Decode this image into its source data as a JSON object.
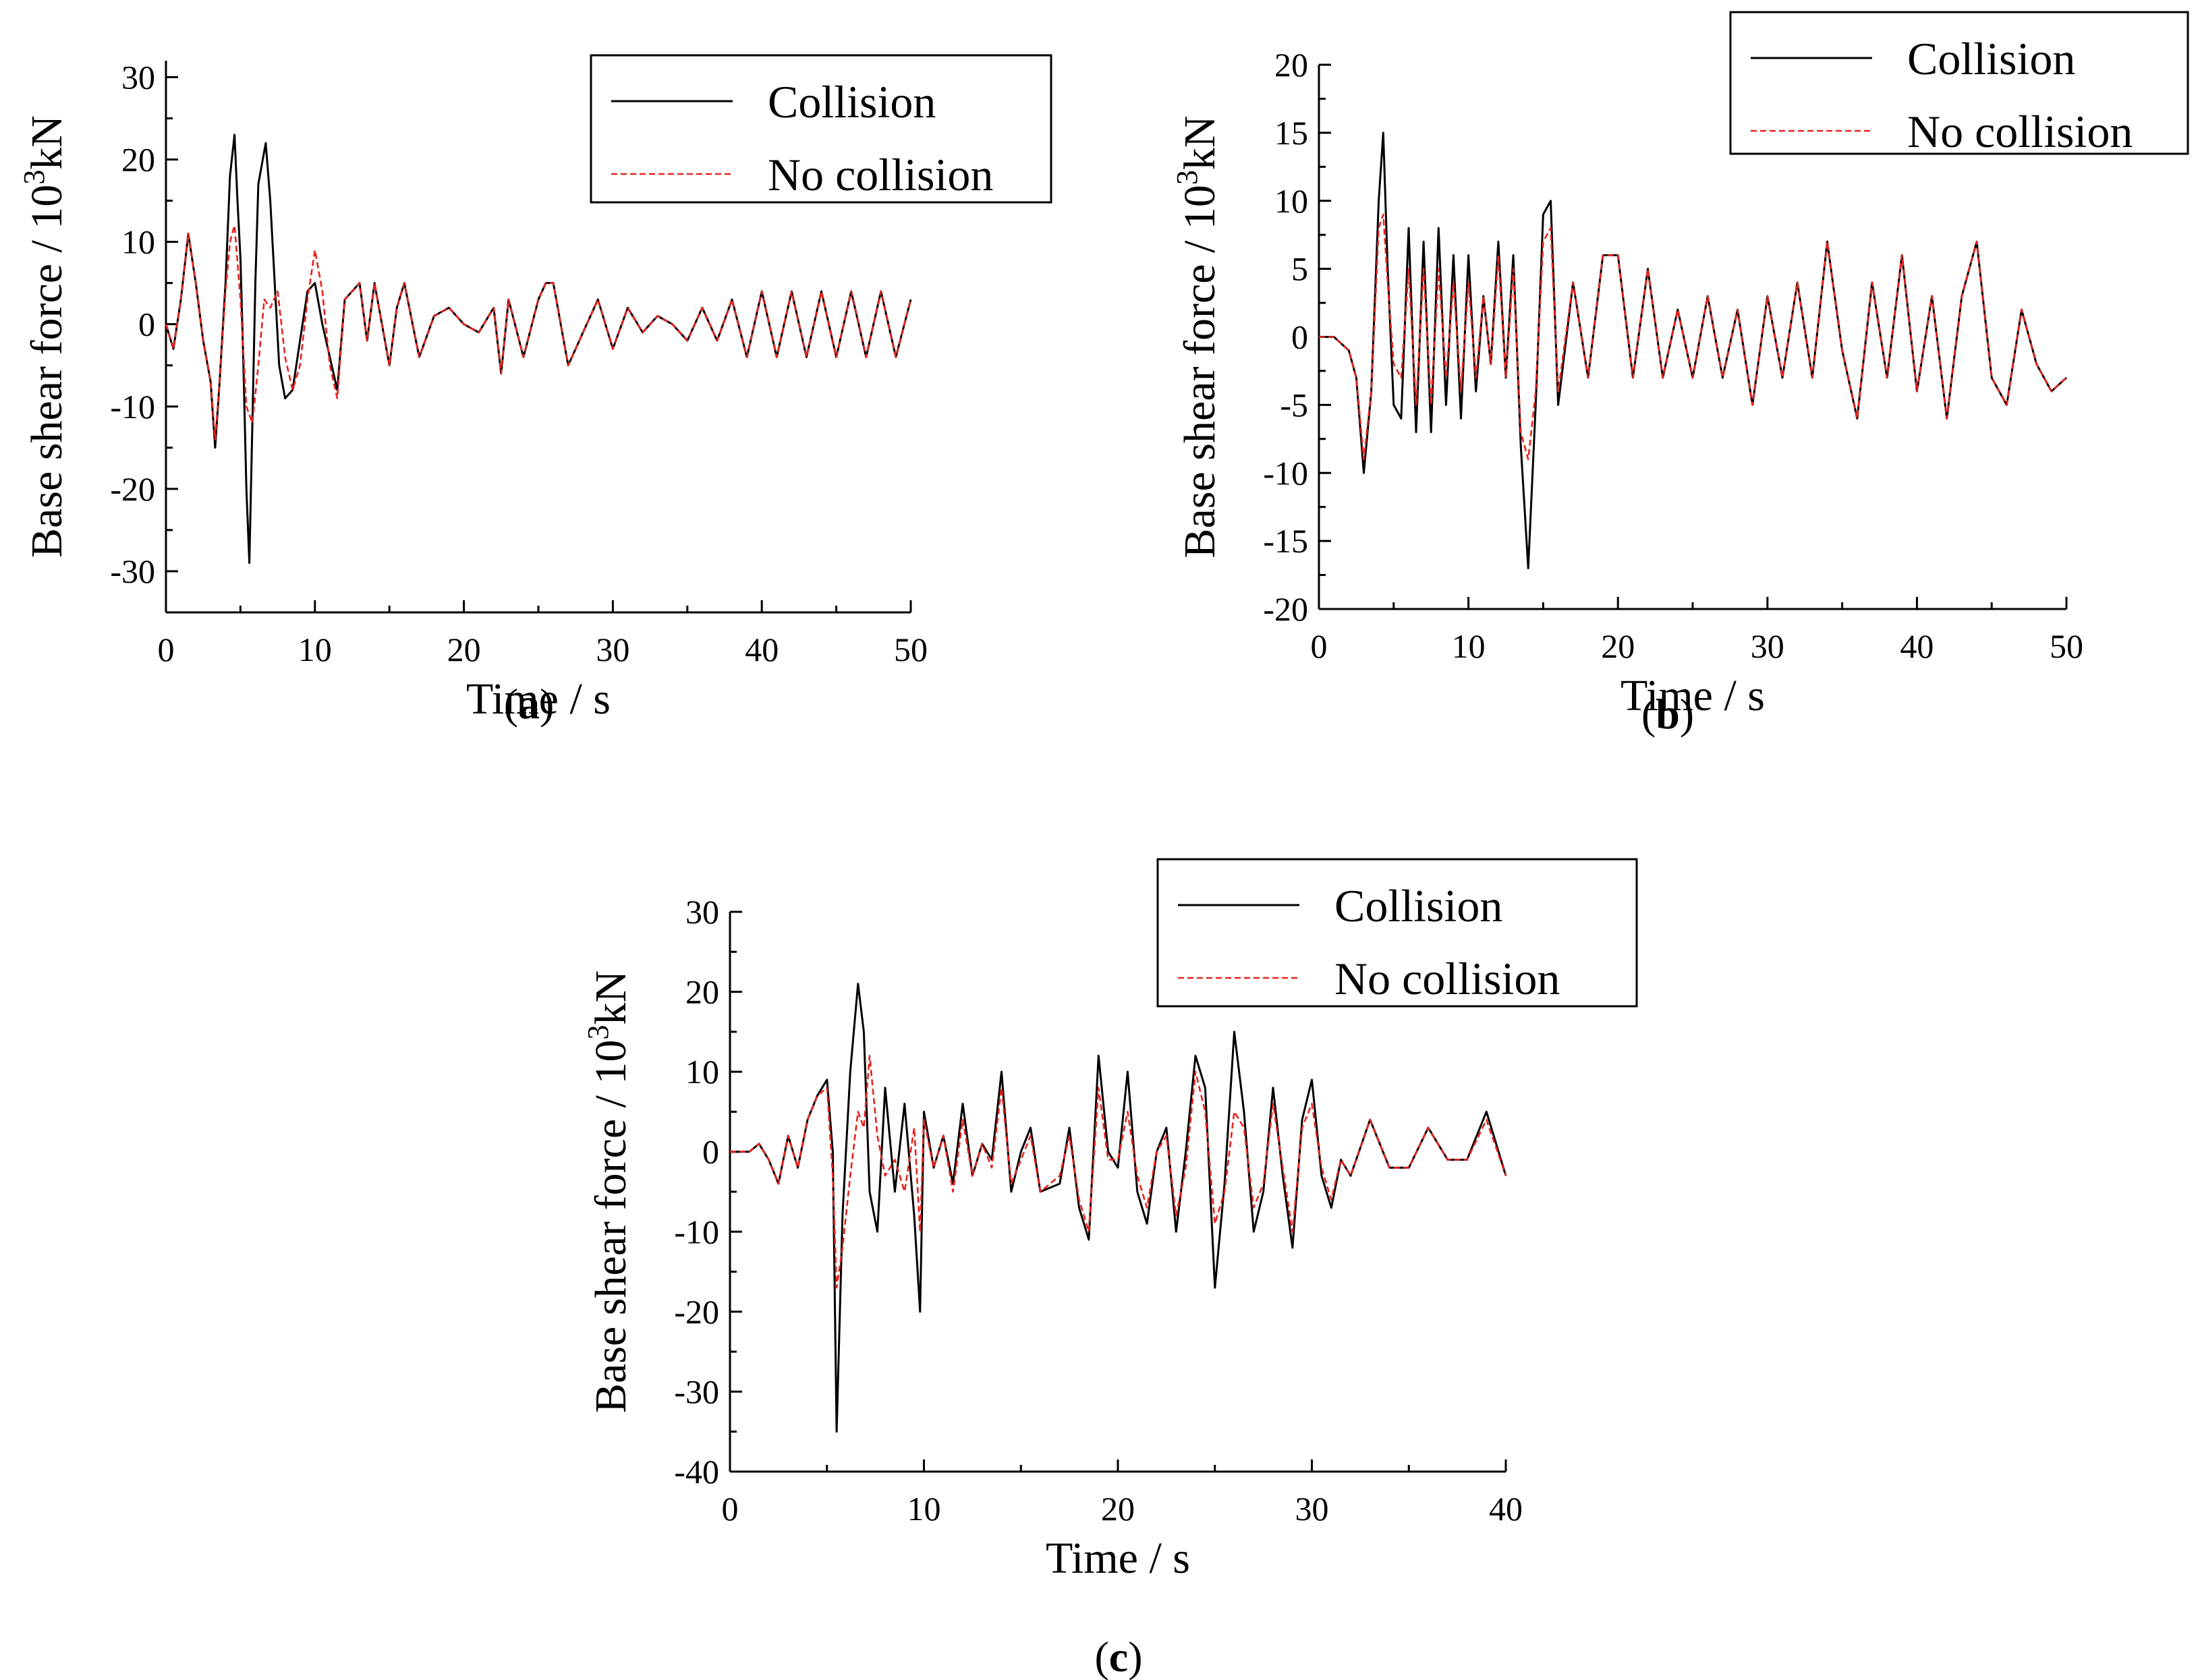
{
  "figure": {
    "panel_labels": [
      {
        "open": "(",
        "letter": "a",
        "close": ")"
      },
      {
        "open": "(",
        "letter": "b",
        "close": ")"
      },
      {
        "open": "(",
        "letter": "c",
        "close": ")"
      }
    ]
  },
  "colors": {
    "collision": "#000000",
    "no_collision": "#e8231f",
    "axis": "#000000"
  },
  "chart_data": [
    {
      "type": "line",
      "panel": "a",
      "xlabel": "Time / s",
      "ylabel": {
        "main": "Base shear force / 10",
        "sup": "3",
        "unit": "kN"
      },
      "xlim": [
        0,
        50
      ],
      "ylim": [
        -35,
        32
      ],
      "xticks": [
        0,
        10,
        20,
        30,
        40,
        50
      ],
      "yticks": [
        -30,
        -20,
        -10,
        0,
        10,
        20,
        30
      ],
      "grid": false,
      "legend_position": "top-right",
      "series": [
        {
          "name": "Collision",
          "style": "solid",
          "color": "#000000",
          "x": [
            0,
            0.5,
            1,
            1.5,
            2,
            2.5,
            3,
            3.3,
            3.6,
            4,
            4.3,
            4.6,
            4.8,
            5,
            5.2,
            5.4,
            5.6,
            5.8,
            6,
            6.2,
            6.5,
            6.7,
            7,
            7.3,
            7.6,
            8,
            8.5,
            9,
            9.5,
            10,
            10.5,
            11,
            11.5,
            12,
            12.5,
            13,
            13.5,
            14,
            15,
            15.5,
            16,
            17,
            18,
            19,
            20,
            21,
            22,
            22.5,
            23,
            24,
            25,
            25.5,
            26,
            27,
            28,
            29,
            30,
            31,
            32,
            33,
            34,
            35,
            36,
            37,
            38,
            39,
            40,
            41,
            42,
            43,
            44,
            45,
            46,
            47,
            48,
            49,
            50
          ],
          "y": [
            0,
            -3,
            3,
            11,
            5,
            -2,
            -7,
            -15,
            -7,
            5,
            18,
            23,
            15,
            8,
            -5,
            -20,
            -29,
            -12,
            5,
            17,
            20,
            22,
            15,
            5,
            -5,
            -9,
            -8,
            -2,
            4,
            5,
            0,
            -4,
            -8,
            3,
            4,
            5,
            -2,
            5,
            -5,
            2,
            5,
            -4,
            1,
            2,
            0,
            -1,
            2,
            -6,
            3,
            -4,
            3,
            5,
            5,
            -5,
            -1,
            3,
            -3,
            2,
            -1,
            1,
            0,
            -2,
            2,
            -2,
            3,
            -4,
            4,
            -4,
            4,
            -4,
            4,
            -4,
            4,
            -4,
            4,
            -4,
            3
          ]
        },
        {
          "name": "No collision",
          "style": "dashed",
          "color": "#e8231f",
          "x": [
            0,
            0.5,
            1,
            1.5,
            2,
            2.5,
            3,
            3.3,
            3.6,
            4,
            4.3,
            4.6,
            5,
            5.4,
            5.8,
            6.2,
            6.6,
            7,
            7.5,
            8,
            8.5,
            9,
            9.5,
            10,
            10.5,
            11,
            11.5,
            12,
            12.5,
            13,
            13.5,
            14,
            15,
            15.5,
            16,
            17,
            18,
            19,
            20,
            21,
            22,
            22.5,
            23,
            24,
            25,
            25.5,
            26,
            27,
            28,
            29,
            30,
            31,
            32,
            33,
            34,
            35,
            36,
            37,
            38,
            39,
            40,
            41,
            42,
            43,
            44,
            45,
            46,
            47,
            48,
            49,
            50
          ],
          "y": [
            0,
            -3,
            3,
            11,
            5,
            -2,
            -7,
            -14,
            -7,
            4,
            10,
            12,
            3,
            -10,
            -12,
            -5,
            3,
            2,
            4,
            -4,
            -8,
            -5,
            3,
            9,
            4,
            -5,
            -9,
            3,
            4,
            5,
            -2,
            5,
            -5,
            2,
            5,
            -4,
            1,
            2,
            0,
            -1,
            2,
            -6,
            3,
            -4,
            3,
            5,
            5,
            -5,
            -1,
            3,
            -3,
            2,
            -1,
            1,
            0,
            -2,
            2,
            -2,
            3,
            -4,
            4,
            -4,
            4,
            -4,
            4,
            -4,
            4,
            -4,
            4,
            -4,
            3
          ]
        }
      ]
    },
    {
      "type": "line",
      "panel": "b",
      "xlabel": "Time / s",
      "ylabel": {
        "main": "Base shear force / 10",
        "sup": "3",
        "unit": "kN"
      },
      "xlim": [
        0,
        50
      ],
      "ylim": [
        -20,
        20
      ],
      "xticks": [
        0,
        10,
        20,
        30,
        40,
        50
      ],
      "yticks": [
        -20,
        -15,
        -10,
        -5,
        0,
        5,
        10,
        15,
        20
      ],
      "grid": false,
      "legend_position": "top-right",
      "series": [
        {
          "name": "Collision",
          "style": "solid",
          "color": "#000000",
          "x": [
            0,
            1,
            2,
            2.5,
            3,
            3.5,
            4,
            4.3,
            4.6,
            5,
            5.5,
            6,
            6.5,
            7,
            7.5,
            8,
            8.5,
            9,
            9.5,
            10,
            10.5,
            11,
            11.5,
            12,
            12.5,
            13,
            13.5,
            14,
            14.5,
            15,
            15.5,
            16,
            17,
            18,
            19,
            20,
            21,
            22,
            23,
            24,
            25,
            26,
            27,
            28,
            29,
            30,
            31,
            32,
            33,
            34,
            35,
            36,
            37,
            38,
            39,
            40,
            41,
            42,
            43,
            44,
            45,
            46,
            47,
            48,
            49,
            50
          ],
          "y": [
            0,
            0,
            -1,
            -3,
            -10,
            -4,
            10,
            15,
            5,
            -5,
            -6,
            8,
            -7,
            7,
            -7,
            8,
            -5,
            6,
            -6,
            6,
            -4,
            3,
            -2,
            7,
            -3,
            6,
            -8,
            -17,
            -5,
            9,
            10,
            -5,
            4,
            -3,
            6,
            6,
            -3,
            5,
            -3,
            2,
            -3,
            3,
            -3,
            2,
            -5,
            3,
            -3,
            4,
            -3,
            7,
            -1,
            -6,
            4,
            -3,
            6,
            -4,
            3,
            -6,
            3,
            7,
            -3,
            -5,
            2,
            -2,
            -4,
            -3
          ]
        },
        {
          "name": "No collision",
          "style": "dashed",
          "color": "#e8231f",
          "x": [
            0,
            1,
            2,
            2.5,
            3,
            3.5,
            4,
            4.3,
            4.6,
            5,
            5.5,
            6,
            6.5,
            7,
            7.5,
            8,
            8.5,
            9,
            9.5,
            10,
            10.5,
            11,
            11.5,
            12,
            12.5,
            13,
            13.5,
            14,
            14.5,
            15,
            15.5,
            16,
            17,
            18,
            19,
            20,
            21,
            22,
            23,
            24,
            25,
            26,
            27,
            28,
            29,
            30,
            31,
            32,
            33,
            34,
            35,
            36,
            37,
            38,
            39,
            40,
            41,
            42,
            43,
            44,
            45,
            46,
            47,
            48,
            49,
            50
          ],
          "y": [
            0,
            0,
            -1,
            -3,
            -9,
            -4,
            8,
            9,
            4,
            -2,
            -3,
            5,
            -5,
            5,
            -5,
            5,
            -3,
            4,
            -4,
            4,
            -3,
            3,
            -2,
            6,
            -3,
            5,
            -7,
            -9,
            -4,
            7,
            8,
            -4,
            4,
            -3,
            6,
            6,
            -3,
            5,
            -3,
            2,
            -3,
            3,
            -3,
            2,
            -5,
            3,
            -3,
            4,
            -3,
            7,
            -1,
            -6,
            4,
            -3,
            6,
            -4,
            3,
            -6,
            3,
            7,
            -3,
            -5,
            2,
            -2,
            -4,
            -3
          ]
        }
      ]
    },
    {
      "type": "line",
      "panel": "c",
      "xlabel": "Time / s",
      "ylabel": {
        "main": "Base shear force / 10",
        "sup": "3",
        "unit": "kN"
      },
      "xlim": [
        0,
        40
      ],
      "ylim": [
        -40,
        30
      ],
      "xticks": [
        0,
        10,
        20,
        30,
        40
      ],
      "yticks": [
        -40,
        -30,
        -20,
        -10,
        0,
        10,
        20,
        30
      ],
      "grid": false,
      "legend_position": "top-right",
      "series": [
        {
          "name": "Collision",
          "style": "solid",
          "color": "#000000",
          "x": [
            0,
            1,
            1.5,
            2,
            2.5,
            3,
            3.5,
            4,
            4.5,
            5,
            5.3,
            5.5,
            5.8,
            6.2,
            6.6,
            6.9,
            7.2,
            7.6,
            8,
            8.5,
            9,
            9.5,
            9.8,
            10,
            10.5,
            11,
            11.5,
            12,
            12.5,
            13,
            13.5,
            14,
            14.5,
            15,
            15.5,
            16,
            17,
            17.5,
            18,
            18.5,
            19,
            19.5,
            20,
            20.5,
            21,
            21.5,
            22,
            22.5,
            23,
            23.5,
            24,
            24.5,
            25,
            25.5,
            26,
            26.5,
            27,
            27.5,
            28,
            28.5,
            29,
            29.5,
            30,
            30.5,
            31,
            31.5,
            32,
            33,
            34,
            35,
            36,
            37,
            38,
            39,
            40
          ],
          "y": [
            0,
            0,
            1,
            -1,
            -4,
            2,
            -2,
            4,
            7,
            9,
            0,
            -35,
            -8,
            10,
            21,
            15,
            -5,
            -10,
            8,
            -5,
            6,
            -8,
            -20,
            5,
            -2,
            2,
            -4,
            6,
            -3,
            1,
            -1,
            10,
            -5,
            0,
            3,
            -5,
            -4,
            3,
            -7,
            -11,
            12,
            0,
            -2,
            10,
            -5,
            -9,
            0,
            3,
            -10,
            0,
            12,
            8,
            -17,
            -4,
            15,
            5,
            -10,
            -5,
            8,
            -3,
            -12,
            4,
            9,
            -3,
            -7,
            -1,
            -3,
            4,
            -2,
            -2,
            3,
            -1,
            -1,
            5,
            -3
          ]
        },
        {
          "name": "No collision",
          "style": "dashed",
          "color": "#e8231f",
          "x": [
            0,
            1,
            1.5,
            2,
            2.5,
            3,
            3.5,
            4,
            4.5,
            5,
            5.3,
            5.5,
            5.8,
            6.2,
            6.6,
            6.9,
            7.2,
            7.6,
            8,
            8.5,
            9,
            9.5,
            9.8,
            10,
            10.5,
            11,
            11.5,
            12,
            12.5,
            13,
            13.5,
            14,
            14.5,
            15,
            15.5,
            16,
            17,
            17.5,
            18,
            18.5,
            19,
            19.5,
            20,
            20.5,
            21,
            21.5,
            22,
            22.5,
            23,
            23.5,
            24,
            24.5,
            25,
            25.5,
            26,
            26.5,
            27,
            27.5,
            28,
            28.5,
            29,
            29.5,
            30,
            30.5,
            31,
            31.5,
            32,
            33,
            34,
            35,
            36,
            37,
            38,
            39,
            40
          ],
          "y": [
            0,
            0,
            1,
            -1,
            -4,
            2,
            -2,
            4,
            7,
            8,
            -3,
            -17,
            -12,
            -3,
            5,
            3,
            12,
            2,
            -3,
            -1,
            -5,
            3,
            -10,
            4,
            -2,
            2,
            -5,
            4,
            -3,
            1,
            -2,
            8,
            -4,
            -1,
            2,
            -5,
            -3,
            2,
            -6,
            -10,
            8,
            -1,
            -1,
            5,
            -3,
            -7,
            0,
            2,
            -8,
            -2,
            10,
            5,
            -9,
            -5,
            5,
            3,
            -7,
            -4,
            6,
            -2,
            -10,
            3,
            6,
            -2,
            -6,
            -1,
            -3,
            4,
            -2,
            -2,
            3,
            -1,
            -1,
            4,
            -3
          ]
        }
      ]
    }
  ]
}
